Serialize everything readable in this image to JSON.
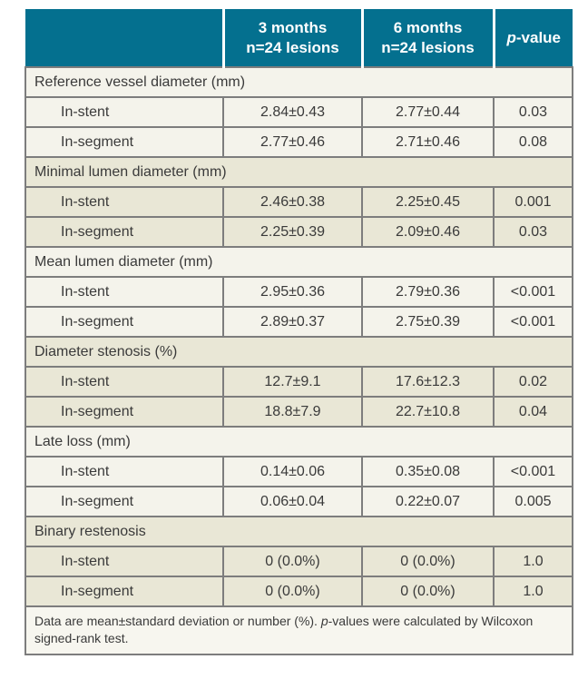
{
  "header": {
    "col1": "",
    "col2_line1": "3 months",
    "col2_line2": "n=24 lesions",
    "col3_line1": "6 months",
    "col3_line2": "n=24 lesions",
    "col4_italic": "p",
    "col4_rest": "-value"
  },
  "sections": [
    {
      "title": "Reference vessel diameter (mm)",
      "shade": "light",
      "rows": [
        {
          "label": "In-stent",
          "m3": "2.84±0.43",
          "m6": "2.77±0.44",
          "p": "0.03"
        },
        {
          "label": "In-segment",
          "m3": "2.77±0.46",
          "m6": "2.71±0.46",
          "p": "0.08"
        }
      ]
    },
    {
      "title": "Minimal lumen diameter (mm)",
      "shade": "beige",
      "rows": [
        {
          "label": "In-stent",
          "m3": "2.46±0.38",
          "m6": "2.25±0.45",
          "p": "0.001"
        },
        {
          "label": "In-segment",
          "m3": "2.25±0.39",
          "m6": "2.09±0.46",
          "p": "0.03"
        }
      ]
    },
    {
      "title": "Mean lumen diameter (mm)",
      "shade": "light",
      "rows": [
        {
          "label": "In-stent",
          "m3": "2.95±0.36",
          "m6": "2.79±0.36",
          "p": "<0.001"
        },
        {
          "label": "In-segment",
          "m3": "2.89±0.37",
          "m6": "2.75±0.39",
          "p": "<0.001"
        }
      ]
    },
    {
      "title": "Diameter stenosis (%)",
      "shade": "beige",
      "rows": [
        {
          "label": "In-stent",
          "m3": "12.7±9.1",
          "m6": "17.6±12.3",
          "p": "0.02"
        },
        {
          "label": "In-segment",
          "m3": "18.8±7.9",
          "m6": "22.7±10.8",
          "p": "0.04"
        }
      ]
    },
    {
      "title": "Late loss (mm)",
      "shade": "light",
      "rows": [
        {
          "label": "In-stent",
          "m3": "0.14±0.06",
          "m6": "0.35±0.08",
          "p": "<0.001"
        },
        {
          "label": "In-segment",
          "m3": "0.06±0.04",
          "m6": "0.22±0.07",
          "p": "0.005"
        }
      ]
    },
    {
      "title": "Binary restenosis",
      "shade": "beige",
      "rows": [
        {
          "label": "In-stent",
          "m3": "0 (0.0%)",
          "m6": "0 (0.0%)",
          "p": "1.0"
        },
        {
          "label": "In-segment",
          "m3": "0 (0.0%)",
          "m6": "0 (0.0%)",
          "p": "1.0"
        }
      ]
    }
  ],
  "footnote": {
    "part1": "Data are mean±standard deviation or number (%). ",
    "italic": "p",
    "part2": "-values were calculated by Wilcoxon signed-rank test."
  },
  "colors": {
    "header_teal": "#04708f",
    "row_light": "#f4f3eb",
    "row_beige": "#e9e7d6",
    "border_gray": "#7d7d7d",
    "text": "#3a3a3a",
    "header_text": "#ffffff"
  }
}
